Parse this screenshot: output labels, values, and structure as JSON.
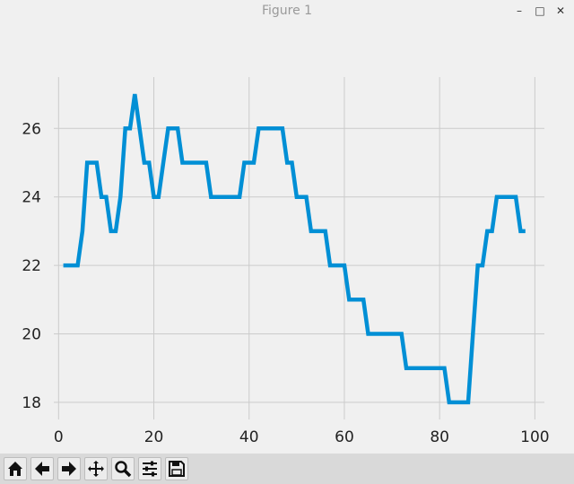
{
  "window": {
    "title": "Figure 1",
    "minimize_icon": "minimize-icon",
    "maximize_icon": "maximize-icon",
    "close_icon": "close-icon"
  },
  "toolbar": {
    "buttons": [
      {
        "name": "home-button",
        "icon": "home-icon"
      },
      {
        "name": "back-button",
        "icon": "arrow-left-icon"
      },
      {
        "name": "forward-button",
        "icon": "arrow-right-icon"
      },
      {
        "name": "pan-button",
        "icon": "move-icon"
      },
      {
        "name": "zoom-button",
        "icon": "magnifier-icon"
      },
      {
        "name": "configure-subplots-button",
        "icon": "sliders-icon"
      },
      {
        "name": "save-button",
        "icon": "floppy-disk-icon"
      }
    ]
  },
  "chart_data": {
    "type": "line",
    "title": "",
    "xlabel": "",
    "ylabel": "",
    "xlim": [
      -1,
      102
    ],
    "ylim": [
      17.5,
      27.5
    ],
    "xticks": [
      0,
      20,
      40,
      60,
      80,
      100
    ],
    "yticks": [
      18,
      20,
      22,
      24,
      26
    ],
    "xtick_labels": [
      "0",
      "20",
      "40",
      "60",
      "80",
      "100"
    ],
    "ytick_labels": [
      "18",
      "20",
      "22",
      "24",
      "26"
    ],
    "grid": true,
    "line_color": "#008fd5",
    "series": [
      {
        "x": [
          1,
          2,
          3,
          4,
          5,
          6,
          7,
          8,
          9,
          10,
          11,
          12,
          13,
          14,
          15,
          16,
          17,
          18,
          19,
          20,
          21,
          22,
          23,
          24,
          25,
          26,
          27,
          28,
          29,
          30,
          31,
          32,
          33,
          34,
          35,
          36,
          37,
          38,
          39,
          40,
          41,
          42,
          43,
          44,
          45,
          46,
          47,
          48,
          49,
          50,
          51,
          52,
          53,
          54,
          55,
          56,
          57,
          58,
          59,
          60,
          61,
          62,
          63,
          64,
          65,
          66,
          67,
          68,
          69,
          70,
          71,
          72,
          73,
          74,
          75,
          76,
          77,
          78,
          79,
          80,
          81,
          82,
          83,
          84,
          85,
          86,
          87,
          88,
          89,
          90,
          91,
          92,
          93,
          94,
          95,
          96,
          97,
          98
        ],
        "y": [
          22,
          22,
          22,
          22,
          23,
          25,
          25,
          25,
          24,
          24,
          23,
          23,
          24,
          26,
          26,
          27,
          26,
          25,
          25,
          24,
          24,
          25,
          26,
          26,
          26,
          25,
          25,
          25,
          25,
          25,
          25,
          24,
          24,
          24,
          24,
          24,
          24,
          24,
          25,
          25,
          25,
          26,
          26,
          26,
          26,
          26,
          26,
          25,
          25,
          24,
          24,
          24,
          23,
          23,
          23,
          23,
          22,
          22,
          22,
          22,
          21,
          21,
          21,
          21,
          20,
          20,
          20,
          20,
          20,
          20,
          20,
          20,
          19,
          19,
          19,
          19,
          19,
          19,
          19,
          19,
          19,
          18,
          18,
          18,
          18,
          18,
          20,
          22,
          22,
          23,
          23,
          24,
          24,
          24,
          24,
          24,
          23,
          23
        ]
      }
    ]
  }
}
